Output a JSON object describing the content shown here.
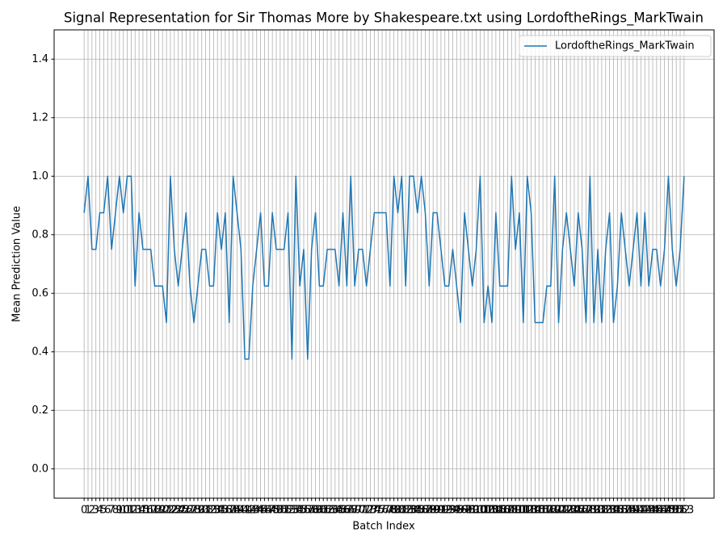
{
  "chart_data": {
    "type": "line",
    "title": "Signal Representation for Sir Thomas More by Shakespeare.txt using LordoftheRings_MarkTwain",
    "xlabel": "Batch Index",
    "ylabel": "Mean Prediction Value",
    "x": [
      0,
      1,
      2,
      3,
      4,
      5,
      6,
      7,
      8,
      9,
      10,
      11,
      12,
      13,
      14,
      15,
      16,
      17,
      18,
      19,
      20,
      21,
      22,
      23,
      24,
      25,
      26,
      27,
      28,
      29,
      30,
      31,
      32,
      33,
      34,
      35,
      36,
      37,
      38,
      39,
      40,
      41,
      42,
      43,
      44,
      45,
      46,
      47,
      48,
      49,
      50,
      51,
      52,
      53,
      54,
      55,
      56,
      57,
      58,
      59,
      60,
      61,
      62,
      63,
      64,
      65,
      66,
      67,
      68,
      69,
      70,
      71,
      72,
      73,
      74,
      75,
      76,
      77,
      78,
      79,
      80,
      81,
      82,
      83,
      84,
      85,
      86,
      87,
      88,
      89,
      90,
      91,
      92,
      93,
      94,
      95,
      96,
      97,
      98,
      99,
      100,
      101,
      102,
      103,
      104,
      105,
      106,
      107,
      108,
      109,
      110,
      111,
      112,
      113,
      114,
      115,
      116,
      117,
      118,
      119,
      120,
      121,
      122,
      123,
      124,
      125,
      126,
      127,
      128,
      129,
      130,
      131,
      132,
      133,
      134,
      135,
      136,
      137,
      138,
      139,
      140,
      141,
      142,
      143,
      144,
      145,
      146,
      147,
      148,
      149,
      150,
      151,
      152,
      153
    ],
    "series": [
      {
        "name": "LordoftheRings_MarkTwain",
        "color": "#1f77b4",
        "values": [
          0.875,
          1.0,
          0.75,
          0.75,
          0.875,
          0.875,
          1.0,
          0.75,
          0.875,
          1.0,
          0.875,
          1.0,
          1.0,
          0.625,
          0.875,
          0.75,
          0.75,
          0.75,
          0.625,
          0.625,
          0.625,
          0.5,
          1.0,
          0.75,
          0.625,
          0.75,
          0.875,
          0.625,
          0.5,
          0.625,
          0.75,
          0.75,
          0.625,
          0.625,
          0.875,
          0.75,
          0.875,
          0.5,
          1.0,
          0.875,
          0.75,
          0.375,
          0.375,
          0.625,
          0.75,
          0.875,
          0.625,
          0.625,
          0.875,
          0.75,
          0.75,
          0.75,
          0.875,
          0.375,
          1.0,
          0.625,
          0.75,
          0.375,
          0.75,
          0.875,
          0.625,
          0.625,
          0.75,
          0.75,
          0.75,
          0.625,
          0.875,
          0.625,
          1.0,
          0.625,
          0.75,
          0.75,
          0.625,
          0.75,
          0.875,
          0.875,
          0.875,
          0.875,
          0.625,
          1.0,
          0.875,
          1.0,
          0.625,
          1.0,
          1.0,
          0.875,
          1.0,
          0.875,
          0.625,
          0.875,
          0.875,
          0.75,
          0.625,
          0.625,
          0.75,
          0.625,
          0.5,
          0.875,
          0.75,
          0.625,
          0.75,
          1.0,
          0.5,
          0.625,
          0.5,
          0.875,
          0.625,
          0.625,
          0.625,
          1.0,
          0.75,
          0.875,
          0.5,
          1.0,
          0.875,
          0.5,
          0.5,
          0.5,
          0.625,
          0.625,
          1.0,
          0.5,
          0.75,
          0.875,
          0.75,
          0.625,
          0.875,
          0.75,
          0.5,
          1.0,
          0.5,
          0.75,
          0.5,
          0.75,
          0.875,
          0.5,
          0.625,
          0.875,
          0.75,
          0.625,
          0.75,
          0.875,
          0.625,
          0.875,
          0.625,
          0.75,
          0.75,
          0.625,
          0.75,
          1.0,
          0.75,
          0.625,
          0.75,
          1.0
        ]
      }
    ],
    "xlim": [
      -7.65,
      160.65
    ],
    "xticks": [
      0,
      1,
      2,
      3,
      4,
      5,
      6,
      7,
      8,
      9,
      10,
      11,
      12,
      13,
      14,
      15,
      16,
      17,
      18,
      19,
      20,
      21,
      22,
      23,
      24,
      25,
      26,
      27,
      28,
      29,
      30,
      31,
      32,
      33,
      34,
      35,
      36,
      37,
      38,
      39,
      40,
      41,
      42,
      43,
      44,
      45,
      46,
      47,
      48,
      49,
      50,
      51,
      52,
      53,
      54,
      55,
      56,
      57,
      58,
      59,
      60,
      61,
      62,
      63,
      64,
      65,
      66,
      67,
      68,
      69,
      70,
      71,
      72,
      73,
      74,
      75,
      76,
      77,
      78,
      79,
      80,
      81,
      82,
      83,
      84,
      85,
      86,
      87,
      88,
      89,
      90,
      91,
      92,
      93,
      94,
      95,
      96,
      97,
      98,
      99,
      100,
      101,
      102,
      103,
      104,
      105,
      106,
      107,
      108,
      109,
      110,
      111,
      112,
      113,
      114,
      115,
      116,
      117,
      118,
      119,
      120,
      121,
      122,
      123,
      124,
      125,
      126,
      127,
      128,
      129,
      130,
      131,
      132,
      133,
      134,
      135,
      136,
      137,
      138,
      139,
      140,
      141,
      142,
      143,
      144,
      145,
      146,
      147,
      148,
      149,
      150,
      151,
      152,
      153
    ],
    "ylim": [
      -0.1,
      1.5
    ],
    "yticks": [
      {
        "value": 0,
        "label": "0.0"
      },
      {
        "value": 0.2,
        "label": "0.2"
      },
      {
        "value": 0.4,
        "label": "0.4"
      },
      {
        "value": 0.6,
        "label": "0.6"
      },
      {
        "value": 0.8,
        "label": "0.8"
      },
      {
        "value": 1,
        "label": "1.0"
      },
      {
        "value": 1.2,
        "label": "1.2"
      },
      {
        "value": 1.4,
        "label": "1.4"
      }
    ],
    "grid": true,
    "legend": "upper right"
  }
}
